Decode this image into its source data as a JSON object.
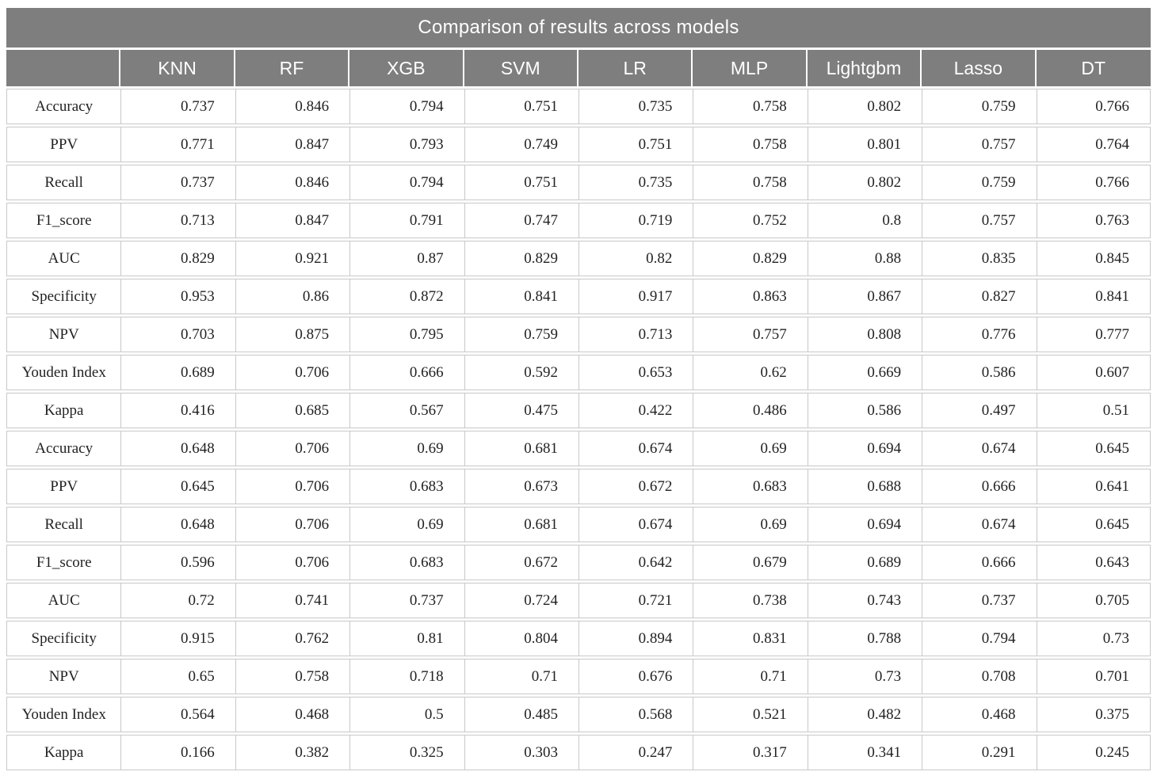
{
  "chart_data": {
    "type": "table",
    "title": "Comparison of results across models",
    "row_header_label": "",
    "columns": [
      "KNN",
      "RF",
      "XGB",
      "SVM",
      "LR",
      "MLP",
      "Lightgbm",
      "Lasso",
      "DT"
    ],
    "rows": [
      {
        "label": "Accuracy",
        "values": [
          "0.737",
          "0.846",
          "0.794",
          "0.751",
          "0.735",
          "0.758",
          "0.802",
          "0.759",
          "0.766"
        ]
      },
      {
        "label": "PPV",
        "values": [
          "0.771",
          "0.847",
          "0.793",
          "0.749",
          "0.751",
          "0.758",
          "0.801",
          "0.757",
          "0.764"
        ]
      },
      {
        "label": "Recall",
        "values": [
          "0.737",
          "0.846",
          "0.794",
          "0.751",
          "0.735",
          "0.758",
          "0.802",
          "0.759",
          "0.766"
        ]
      },
      {
        "label": "F1_score",
        "values": [
          "0.713",
          "0.847",
          "0.791",
          "0.747",
          "0.719",
          "0.752",
          "0.8",
          "0.757",
          "0.763"
        ]
      },
      {
        "label": "AUC",
        "values": [
          "0.829",
          "0.921",
          "0.87",
          "0.829",
          "0.82",
          "0.829",
          "0.88",
          "0.835",
          "0.845"
        ]
      },
      {
        "label": "Specificity",
        "values": [
          "0.953",
          "0.86",
          "0.872",
          "0.841",
          "0.917",
          "0.863",
          "0.867",
          "0.827",
          "0.841"
        ]
      },
      {
        "label": "NPV",
        "values": [
          "0.703",
          "0.875",
          "0.795",
          "0.759",
          "0.713",
          "0.757",
          "0.808",
          "0.776",
          "0.777"
        ]
      },
      {
        "label": "Youden Index",
        "values": [
          "0.689",
          "0.706",
          "0.666",
          "0.592",
          "0.653",
          "0.62",
          "0.669",
          "0.586",
          "0.607"
        ]
      },
      {
        "label": "Kappa",
        "values": [
          "0.416",
          "0.685",
          "0.567",
          "0.475",
          "0.422",
          "0.486",
          "0.586",
          "0.497",
          "0.51"
        ]
      },
      {
        "label": "Accuracy",
        "values": [
          "0.648",
          "0.706",
          "0.69",
          "0.681",
          "0.674",
          "0.69",
          "0.694",
          "0.674",
          "0.645"
        ]
      },
      {
        "label": "PPV",
        "values": [
          "0.645",
          "0.706",
          "0.683",
          "0.673",
          "0.672",
          "0.683",
          "0.688",
          "0.666",
          "0.641"
        ]
      },
      {
        "label": "Recall",
        "values": [
          "0.648",
          "0.706",
          "0.69",
          "0.681",
          "0.674",
          "0.69",
          "0.694",
          "0.674",
          "0.645"
        ]
      },
      {
        "label": "F1_score",
        "values": [
          "0.596",
          "0.706",
          "0.683",
          "0.672",
          "0.642",
          "0.679",
          "0.689",
          "0.666",
          "0.643"
        ]
      },
      {
        "label": "AUC",
        "values": [
          "0.72",
          "0.741",
          "0.737",
          "0.724",
          "0.721",
          "0.738",
          "0.743",
          "0.737",
          "0.705"
        ]
      },
      {
        "label": "Specificity",
        "values": [
          "0.915",
          "0.762",
          "0.81",
          "0.804",
          "0.894",
          "0.831",
          "0.788",
          "0.794",
          "0.73"
        ]
      },
      {
        "label": "NPV",
        "values": [
          "0.65",
          "0.758",
          "0.718",
          "0.71",
          "0.676",
          "0.71",
          "0.73",
          "0.708",
          "0.701"
        ]
      },
      {
        "label": "Youden Index",
        "values": [
          "0.564",
          "0.468",
          "0.5",
          "0.485",
          "0.568",
          "0.521",
          "0.482",
          "0.468",
          "0.375"
        ]
      },
      {
        "label": "Kappa",
        "values": [
          "0.166",
          "0.382",
          "0.325",
          "0.303",
          "0.247",
          "0.317",
          "0.341",
          "0.291",
          "0.245"
        ]
      }
    ],
    "layout": {
      "column_count": 10,
      "body_row_count": 18
    }
  },
  "colors": {
    "header_bg": "#7e7e7e",
    "header_text": "#ffffff",
    "body_text": "#222222",
    "cell_border": "#c8c8c8",
    "page_bg": "#ffffff"
  }
}
